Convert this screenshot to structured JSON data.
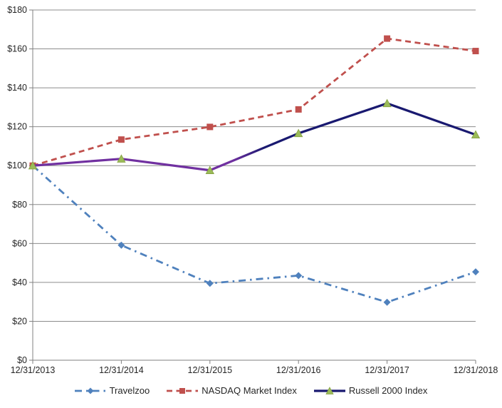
{
  "chart_data": {
    "type": "line",
    "title": "",
    "categories": [
      "12/31/2013",
      "12/31/2014",
      "12/31/2015",
      "12/31/2016",
      "12/31/2017",
      "12/31/2018"
    ],
    "series": [
      {
        "name": "Travelzoo",
        "values": [
          100,
          59.1,
          39.5,
          43.5,
          29.8,
          45.4
        ],
        "color": "#4F81BD",
        "marker": "diamond",
        "line_style": "dash-dot",
        "line_width": 2.8
      },
      {
        "name": "NASDAQ Market Index",
        "values": [
          100,
          113.4,
          119.9,
          128.9,
          165.3,
          158.9
        ],
        "color": "#C0504D",
        "marker": "square",
        "line_style": "dashed",
        "line_width": 2.8
      },
      {
        "name": "Russell 2000 Index",
        "values": [
          100,
          103.5,
          97.6,
          116.6,
          132.0,
          115.9
        ],
        "color": "#191970",
        "marker": "triangle",
        "marker_color": "#9BBB59",
        "marker_edge_color": "#84A03F",
        "line_style": "solid",
        "line_width": 3.2,
        "segment_colors": [
          "#7030A0",
          "#7030A0",
          "gradient:#7030A0:#191970",
          "#191970",
          "#191970"
        ]
      }
    ],
    "ylim": [
      0,
      180
    ],
    "ytick_step": 20,
    "y_prefix": "$",
    "grid": true,
    "legend_position": "bottom",
    "axis_color": "#808080",
    "grid_color": "#8C8C8C",
    "label_color": "#262626",
    "background": "#FFFFFF"
  }
}
